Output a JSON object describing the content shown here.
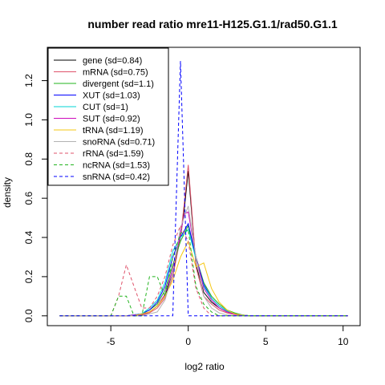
{
  "chart_data": {
    "type": "line",
    "title": "number read ratio mre11-H125.G1.1/rad50.G1.1",
    "xlabel": "log2 ratio",
    "ylabel": "density",
    "xlim": [
      -9.1,
      11.1
    ],
    "ylim": [
      -0.05,
      1.37
    ],
    "xticks": [
      -5,
      0,
      5,
      10
    ],
    "yticks": [
      0.0,
      0.2,
      0.4,
      0.6,
      0.8,
      1.0,
      1.2
    ],
    "grid": false,
    "legend_position": "top-left",
    "series": [
      {
        "name": "gene (sd=0.84)",
        "color": "#000000",
        "dash": "solid",
        "x": [
          -8.3,
          -4.0,
          -3.0,
          -2.5,
          -2.0,
          -1.5,
          -1.0,
          -0.5,
          -0.25,
          0.0,
          0.25,
          0.5,
          1.0,
          1.5,
          2.0,
          2.5,
          3.0,
          3.5,
          4.0,
          10.3
        ],
        "y": [
          0,
          0,
          0.005,
          0.02,
          0.05,
          0.1,
          0.22,
          0.4,
          0.55,
          0.74,
          0.5,
          0.26,
          0.12,
          0.07,
          0.04,
          0.02,
          0.01,
          0.003,
          0,
          0
        ]
      },
      {
        "name": "mRNA (sd=0.75)",
        "color": "#DF536B",
        "dash": "solid",
        "x": [
          -8.3,
          -4.0,
          -3.0,
          -2.5,
          -2.0,
          -1.5,
          -1.0,
          -0.5,
          -0.25,
          0.0,
          0.25,
          0.5,
          1.0,
          1.5,
          2.0,
          2.5,
          3.0,
          3.5,
          4.0,
          10.3
        ],
        "y": [
          0,
          0,
          0.004,
          0.015,
          0.04,
          0.09,
          0.2,
          0.4,
          0.58,
          0.77,
          0.52,
          0.25,
          0.1,
          0.06,
          0.03,
          0.015,
          0.006,
          0.002,
          0,
          0
        ]
      },
      {
        "name": "divergent (sd=1.1)",
        "color": "#22B41E",
        "dash": "solid",
        "x": [
          -8.3,
          -4.0,
          -3.0,
          -2.5,
          -2.0,
          -1.5,
          -1.0,
          -0.5,
          0.0,
          0.5,
          1.0,
          1.5,
          2.0,
          2.5,
          3.0,
          3.5,
          4.0,
          10.3
        ],
        "y": [
          0,
          0,
          0.01,
          0.03,
          0.06,
          0.13,
          0.26,
          0.38,
          0.46,
          0.3,
          0.17,
          0.1,
          0.06,
          0.03,
          0.015,
          0.005,
          0,
          0
        ]
      },
      {
        "name": "XUT (sd=1.03)",
        "color": "#0000FF",
        "dash": "solid",
        "x": [
          -8.3,
          -4.0,
          -3.0,
          -2.5,
          -2.0,
          -1.5,
          -1.0,
          -0.5,
          0.0,
          0.5,
          1.0,
          1.5,
          2.0,
          2.5,
          3.0,
          3.5,
          4.0,
          10.3
        ],
        "y": [
          0,
          0,
          0.01,
          0.03,
          0.07,
          0.15,
          0.3,
          0.4,
          0.47,
          0.3,
          0.16,
          0.09,
          0.05,
          0.025,
          0.01,
          0.004,
          0,
          0
        ]
      },
      {
        "name": "CUT (sd=1)",
        "color": "#00D4D4",
        "dash": "solid",
        "x": [
          -8.3,
          -4.0,
          -3.0,
          -2.5,
          -2.0,
          -1.5,
          -1.0,
          -0.5,
          0.0,
          0.5,
          1.0,
          1.5,
          2.0,
          2.5,
          3.0,
          3.5,
          4.0,
          10.3
        ],
        "y": [
          0,
          0,
          0.01,
          0.04,
          0.08,
          0.17,
          0.33,
          0.4,
          0.44,
          0.29,
          0.15,
          0.09,
          0.05,
          0.025,
          0.01,
          0.004,
          0,
          0
        ]
      },
      {
        "name": "SUT (sd=0.92)",
        "color": "#CD0BBC",
        "dash": "solid",
        "x": [
          -8.3,
          -4.0,
          -3.0,
          -2.5,
          -2.0,
          -1.5,
          -1.0,
          -0.5,
          -0.25,
          0.0,
          0.5,
          1.0,
          1.5,
          2.0,
          2.5,
          3.0,
          3.5,
          4.0,
          10.3
        ],
        "y": [
          0,
          0,
          0.008,
          0.02,
          0.05,
          0.11,
          0.24,
          0.42,
          0.52,
          0.53,
          0.3,
          0.14,
          0.08,
          0.04,
          0.02,
          0.008,
          0.003,
          0,
          0
        ]
      },
      {
        "name": "tRNA (sd=1.19)",
        "color": "#F5C710",
        "dash": "solid",
        "x": [
          -8.3,
          -3.5,
          -2.5,
          -2.0,
          -1.5,
          -1.0,
          -0.5,
          0.0,
          0.5,
          1.0,
          1.5,
          2.0,
          2.5,
          3.0,
          3.5,
          4.0,
          10.3
        ],
        "y": [
          0,
          0,
          0.02,
          0.05,
          0.1,
          0.18,
          0.3,
          0.38,
          0.25,
          0.27,
          0.14,
          0.07,
          0.03,
          0.01,
          0.003,
          0,
          0
        ]
      },
      {
        "name": "snoRNA (sd=0.71)",
        "color": "#B3B3B3",
        "dash": "solid",
        "x": [
          -8.3,
          -3.0,
          -2.0,
          -1.5,
          -1.0,
          -0.5,
          0.0,
          0.5,
          1.0,
          1.5,
          2.0,
          2.5,
          3.0,
          10.3
        ],
        "y": [
          0,
          0,
          0.02,
          0.08,
          0.22,
          0.45,
          0.56,
          0.3,
          0.1,
          0.04,
          0.015,
          0.005,
          0,
          0
        ]
      },
      {
        "name": "rRNA (sd=1.59)",
        "color": "#DF536B",
        "dash": "dashed",
        "x": [
          -8.3,
          -5.0,
          -4.5,
          -4.0,
          -3.5,
          -3.0,
          -2.5,
          -2.0,
          -1.5,
          -1.0,
          -0.5,
          0.0,
          0.5,
          1.0,
          1.5,
          10.3
        ],
        "y": [
          0,
          0,
          0.1,
          0.26,
          0.15,
          0.04,
          0.04,
          0.1,
          0.2,
          0.36,
          0.46,
          0.38,
          0.14,
          0.04,
          0,
          0
        ]
      },
      {
        "name": "ncRNA (sd=1.53)",
        "color": "#22B41E",
        "dash": "dashed",
        "x": [
          -8.3,
          -5.0,
          -4.5,
          -4.0,
          -3.5,
          -3.0,
          -2.5,
          -2.0,
          -1.5,
          -1.0,
          -0.5,
          0.0,
          0.5,
          1.0,
          1.5,
          2.0,
          10.3
        ],
        "y": [
          0,
          0,
          0.1,
          0.1,
          0,
          0,
          0.2,
          0.2,
          0.1,
          0.3,
          0.42,
          0.44,
          0.15,
          0.06,
          0.02,
          0,
          0
        ]
      },
      {
        "name": "snRNA (sd=0.42)",
        "color": "#0000FF",
        "dash": "dashed",
        "x": [
          -8.3,
          -1.0,
          -0.5,
          0.0,
          10.3
        ],
        "y": [
          0,
          0,
          1.3,
          0,
          0
        ]
      }
    ]
  }
}
